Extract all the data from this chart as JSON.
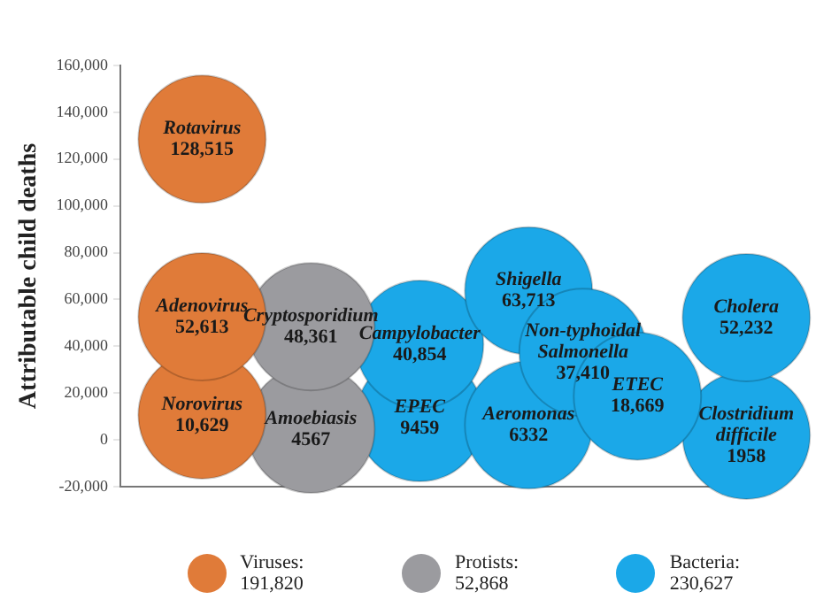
{
  "chart_data": {
    "type": "bubble",
    "ylabel": "Attributable child deaths",
    "ylim": [
      -20000,
      160000
    ],
    "categories": [
      null,
      null,
      null,
      null,
      null,
      null,
      null,
      null,
      null,
      null,
      null,
      null
    ],
    "yticks": [
      {
        "value": -20000,
        "label": "-20,000"
      },
      0,
      {
        "value": 20000,
        "label": "20,000"
      },
      {
        "value": 40000,
        "label": "40,000"
      },
      {
        "value": 60000,
        "label": "60,000"
      },
      {
        "value": 80000,
        "label": "80,000"
      },
      {
        "value": 100000,
        "label": "100,000"
      },
      {
        "value": 120000,
        "label": "120,000"
      },
      {
        "value": 140000,
        "label": "140,000"
      },
      {
        "value": 160000,
        "label": "160,000"
      }
    ],
    "tick_labels": "y",
    "legend": "bottom",
    "series": [
      {
        "name": "Viruses: 191,820",
        "color": "#e07b39",
        "values": [
          null,
          128515,
          null,
          null,
          null,
          null,
          null,
          null,
          null,
          null,
          null,
          null
        ],
        "sizes": [
          null,
          1,
          null,
          null,
          null,
          null,
          null,
          null,
          null,
          null,
          null,
          null
        ],
        "value_labels": [
          null,
          "Rotavirus\n128,515",
          null,
          null,
          null,
          null,
          null,
          null,
          null,
          null,
          null,
          null
        ]
      },
      {
        "color": "#e07b39",
        "values": [
          null,
          52613,
          null,
          null,
          null,
          null,
          null,
          null,
          null,
          null,
          null,
          null
        ],
        "sizes": [
          null,
          1,
          null,
          null,
          null,
          null,
          null,
          null,
          null,
          null,
          null,
          null
        ],
        "value_labels": [
          null,
          "Adenovirus\n52,613",
          null,
          null,
          null,
          null,
          null,
          null,
          null,
          null,
          null,
          null
        ]
      },
      {
        "color": "#e07b39",
        "values": [
          null,
          10629,
          null,
          null,
          null,
          null,
          null,
          null,
          null,
          null,
          null,
          null
        ],
        "sizes": [
          null,
          1,
          null,
          null,
          null,
          null,
          null,
          null,
          null,
          null,
          null,
          null
        ],
        "value_labels": [
          null,
          "Norovirus\n10,629",
          null,
          null,
          null,
          null,
          null,
          null,
          null,
          null,
          null,
          null
        ]
      },
      {
        "name": "Protists: 52,868",
        "color": "#9b9b9f",
        "values": [
          null,
          null,
          null,
          48361,
          null,
          null,
          null,
          null,
          null,
          null,
          null,
          null
        ],
        "sizes": [
          null,
          null,
          null,
          1,
          null,
          null,
          null,
          null,
          null,
          null,
          null,
          null
        ],
        "value_labels": [
          null,
          null,
          null,
          "Cryptosporidium\n48,361",
          null,
          null,
          null,
          null,
          null,
          null,
          null,
          null
        ]
      },
      {
        "color": "#9b9b9f",
        "values": [
          null,
          null,
          null,
          4567,
          null,
          null,
          null,
          null,
          null,
          null,
          null,
          null
        ],
        "sizes": [
          null,
          null,
          null,
          1,
          null,
          null,
          null,
          null,
          null,
          null,
          null,
          null
        ],
        "value_labels": [
          null,
          null,
          null,
          "Amoebiasis\n4567",
          null,
          null,
          null,
          null,
          null,
          null,
          null,
          null
        ]
      },
      {
        "name": "Bacteria: 230,627",
        "color": "#1ba8e8",
        "values": [
          null,
          null,
          null,
          null,
          null,
          40854,
          null,
          63713,
          37410,
          18669,
          null,
          52232
        ],
        "sizes": [
          null,
          null,
          null,
          null,
          null,
          1,
          null,
          1,
          1,
          1,
          null,
          1
        ],
        "value_labels": [
          null,
          null,
          null,
          null,
          null,
          "Campylobacter\n40,854",
          null,
          "Shigella\n63,713",
          "Non-typhoidal\nSalmonella\n37,410",
          "ETEC\n18,669",
          null,
          "Cholera\n52,232"
        ]
      },
      {
        "color": "#1ba8e8",
        "values": [
          null,
          null,
          null,
          null,
          null,
          9459,
          null,
          6332,
          null,
          null,
          null,
          1958
        ],
        "sizes": [
          null,
          null,
          null,
          null,
          null,
          1,
          null,
          1,
          null,
          null,
          null,
          1
        ],
        "value_labels": [
          null,
          null,
          null,
          null,
          null,
          "EPEC\n9459",
          null,
          "Aeromonas\n6332",
          null,
          null,
          null,
          "Clostridium\ndifficile\n1958"
        ]
      }
    ]
  }
}
